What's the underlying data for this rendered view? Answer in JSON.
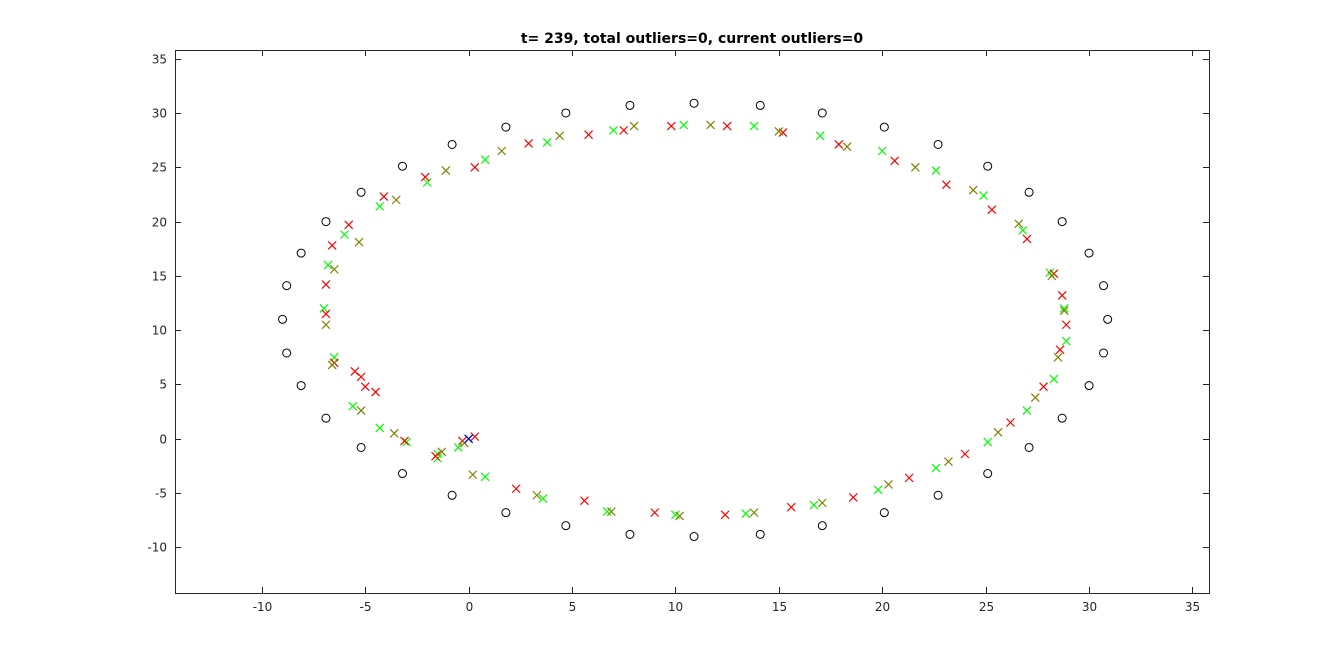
{
  "chart_data": {
    "type": "scatter",
    "title": "t= 239, total outliers=0, current outliers=0",
    "xlabel": "",
    "ylabel": "",
    "xlim": [
      -14.2,
      35.8
    ],
    "ylim": [
      -14.2,
      35.8
    ],
    "xticks": [
      -10,
      -5,
      0,
      5,
      10,
      15,
      20,
      25,
      30,
      35
    ],
    "yticks": [
      -10,
      -5,
      0,
      5,
      10,
      15,
      20,
      25,
      30,
      35
    ],
    "grid": false,
    "legend": "none",
    "ellipse": {
      "center": [
        11,
        11
      ],
      "radius_x": 18,
      "radius_y": 18
    },
    "series": [
      {
        "marker": "o",
        "color": "#000000",
        "x": [
          -9.0,
          -8.8,
          -8.1,
          -6.9,
          -5.2,
          -3.2,
          -0.8,
          1.8,
          4.7,
          7.8,
          10.9,
          14.1,
          17.1,
          20.1,
          22.7,
          25.1,
          27.1,
          28.7,
          30.0,
          30.7,
          30.9,
          30.7,
          30.0,
          28.7,
          27.1,
          25.1,
          22.7,
          20.1,
          17.1,
          14.1,
          10.9,
          7.8,
          4.7,
          1.8,
          -0.8,
          -3.2,
          -5.2,
          -6.9,
          -8.1,
          -8.8
        ],
        "y": [
          11.0,
          14.1,
          17.1,
          20.0,
          22.7,
          25.1,
          27.1,
          28.7,
          30.0,
          30.7,
          30.9,
          30.7,
          30.0,
          28.7,
          27.1,
          25.1,
          22.7,
          20.0,
          17.1,
          14.1,
          11.0,
          7.9,
          4.9,
          1.9,
          -0.8,
          -3.2,
          -5.2,
          -6.8,
          -8.0,
          -8.8,
          -9.0,
          -8.8,
          -8.0,
          -6.8,
          -5.2,
          -3.2,
          -0.8,
          1.9,
          4.9,
          7.9
        ]
      },
      {
        "marker": "x",
        "color": "#00ff00",
        "x": [
          0.0,
          -0.5,
          -1.5,
          -3.0,
          -4.3,
          -5.6,
          -6.5,
          -7.0,
          -6.8,
          -6.0,
          -4.3,
          -2.0,
          0.8,
          3.8,
          7.0,
          10.4,
          13.8,
          17.0,
          20.0,
          22.6,
          24.9,
          26.8,
          28.1,
          28.8,
          28.9,
          28.3,
          27.0,
          25.1,
          22.6,
          19.8,
          16.7,
          13.4,
          10.0,
          6.7,
          3.6,
          0.8,
          -1.5
        ],
        "y": [
          0.0,
          -0.8,
          -1.4,
          -0.3,
          1.0,
          3.0,
          7.5,
          12.0,
          16.0,
          18.8,
          21.4,
          23.6,
          25.7,
          27.3,
          28.4,
          28.9,
          28.8,
          27.9,
          26.5,
          24.7,
          22.4,
          19.2,
          15.3,
          12.0,
          9.0,
          5.5,
          2.6,
          -0.3,
          -2.7,
          -4.7,
          -6.1,
          -6.9,
          -7.0,
          -6.7,
          -5.5,
          -3.5,
          -1.8
        ]
      },
      {
        "marker": "x",
        "color": "#ff0000",
        "x": [
          0.3,
          -0.3,
          -1.6,
          -3.1,
          -4.5,
          -5.0,
          -5.2,
          -5.5,
          -6.5,
          -6.9,
          -6.9,
          -6.6,
          -5.8,
          -4.1,
          -2.1,
          0.3,
          2.9,
          5.8,
          7.5,
          9.8,
          12.5,
          15.2,
          17.9,
          20.6,
          23.1,
          25.3,
          27.0,
          28.3,
          28.7,
          28.9,
          28.6,
          27.8,
          26.2,
          24.0,
          21.3,
          18.6,
          15.6,
          12.4,
          9.0,
          5.6,
          2.3
        ],
        "y": [
          0.2,
          -0.2,
          -1.6,
          -0.2,
          4.3,
          4.8,
          5.7,
          6.2,
          7.0,
          11.5,
          14.2,
          17.8,
          19.7,
          22.3,
          24.1,
          25.0,
          27.2,
          28.0,
          28.4,
          28.8,
          28.8,
          28.2,
          27.1,
          25.6,
          23.4,
          21.1,
          18.4,
          15.2,
          13.2,
          10.5,
          8.2,
          4.8,
          1.5,
          -1.4,
          -3.6,
          -5.4,
          -6.3,
          -7.0,
          -6.8,
          -5.7,
          -4.6
        ]
      },
      {
        "marker": "x",
        "color": "#808000",
        "x": [
          -0.2,
          -1.3,
          -3.6,
          -5.2,
          -6.6,
          -6.9,
          -6.5,
          -5.3,
          -3.5,
          -1.1,
          1.6,
          4.4,
          8.0,
          11.7,
          15.0,
          18.3,
          21.6,
          24.4,
          26.6,
          28.2,
          28.8,
          28.5,
          27.4,
          25.6,
          23.2,
          20.3,
          17.1,
          13.8,
          10.2,
          6.9,
          3.3,
          0.2
        ],
        "y": [
          -0.4,
          -1.2,
          0.5,
          2.6,
          6.8,
          10.5,
          15.6,
          18.1,
          22.0,
          24.7,
          26.5,
          27.9,
          28.8,
          28.9,
          28.3,
          26.9,
          25.0,
          22.9,
          19.8,
          15.0,
          11.8,
          7.5,
          3.8,
          0.6,
          -2.1,
          -4.2,
          -5.9,
          -6.8,
          -7.1,
          -6.7,
          -5.2,
          -3.3
        ]
      },
      {
        "marker": "x",
        "color": "#0000ff",
        "x": [
          0.0
        ],
        "y": [
          0.0
        ]
      }
    ]
  }
}
